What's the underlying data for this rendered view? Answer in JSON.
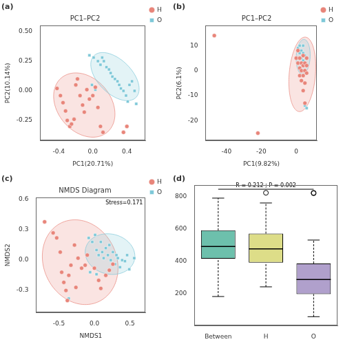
{
  "chart_data": [
    {
      "type": "scatter",
      "title": "PC1–PC2",
      "subtitle": "(a)",
      "xlabel": "PC1(20.71%)",
      "ylabel": "PC2(10.14%)",
      "xlim": [
        -0.62,
        0.62
      ],
      "ylim": [
        -0.42,
        0.55
      ],
      "xticks": [
        -0.4,
        {
          "value": 0,
          "label": "0.0"
        },
        0.4
      ],
      "yticks": [
        -0.25,
        {
          "value": 0,
          "label": "0.00"
        },
        0.25,
        {
          "value": 0.5,
          "label": "0.50"
        }
      ],
      "grid": false,
      "legend": "right",
      "series": [
        {
          "name": "H",
          "color": "#E8857A",
          "marker": "circle",
          "x": [
            -0.42,
            -0.38,
            -0.35,
            -0.32,
            -0.3,
            -0.27,
            -0.25,
            -0.22,
            -0.2,
            -0.18,
            -0.15,
            -0.12,
            -0.1,
            -0.07,
            -0.04,
            0.0,
            0.03,
            0.06,
            0.09,
            0.12,
            0.36,
            0.4
          ],
          "values": [
            0.02,
            -0.04,
            -0.1,
            -0.17,
            -0.25,
            -0.3,
            -0.28,
            -0.24,
            0.05,
            0.1,
            -0.04,
            -0.12,
            -0.18,
            0.01,
            -0.07,
            -0.04,
            0.03,
            -0.14,
            -0.3,
            -0.35,
            -0.35,
            -0.3
          ],
          "ellipse": {
            "cx": -0.1,
            "cy": -0.12,
            "w": 0.75,
            "h": 0.5,
            "angle": -22
          }
        },
        {
          "name": "O",
          "color": "#7EC8D8",
          "marker": "square",
          "x": [
            -0.04,
            0.01,
            0.06,
            0.09,
            0.11,
            0.13,
            0.16,
            0.19,
            0.21,
            0.23,
            0.26,
            0.29,
            0.31,
            0.33,
            0.36,
            0.39,
            0.41,
            0.43,
            0.46,
            0.49,
            0.51,
            -0.01,
            0.03
          ],
          "values": [
            0.3,
            0.28,
            0.25,
            0.22,
            0.28,
            0.25,
            0.2,
            0.18,
            0.15,
            0.12,
            0.1,
            0.08,
            0.05,
            0.02,
            0.0,
            -0.04,
            -0.09,
            0.05,
            0.08,
            0.0,
            -0.11,
            0.05,
            0.01
          ],
          "ellipse": {
            "cx": 0.26,
            "cy": 0.12,
            "w": 0.62,
            "h": 0.32,
            "angle": -28
          }
        }
      ]
    },
    {
      "type": "scatter",
      "title": "PC1–PC2",
      "subtitle": "(b)",
      "xlabel": "PC1(9.82%)",
      "ylabel": "PC2(6.1%)",
      "xlim": [
        -52,
        12
      ],
      "ylim": [
        -28,
        18
      ],
      "xticks": [
        -40,
        -20,
        0
      ],
      "yticks": [
        -20,
        -10,
        0,
        10
      ],
      "grid": false,
      "legend": "right",
      "series": [
        {
          "name": "H",
          "color": "#E8857A",
          "marker": "circle",
          "x": [
            -47,
            -22,
            0,
            1,
            1,
            2,
            2,
            2,
            3,
            3,
            3,
            4,
            4,
            4,
            4,
            5,
            5,
            5,
            5,
            6,
            6,
            6
          ],
          "values": [
            14,
            -25,
            5,
            3,
            8,
            -2,
            1,
            5,
            -4,
            0,
            3,
            -8,
            -2,
            2,
            6,
            -13,
            -5,
            0,
            3,
            -1,
            2,
            5
          ],
          "ellipse": {
            "cx": 3.5,
            "cy": -1.5,
            "w": 15,
            "h": 30,
            "angle": -8
          }
        },
        {
          "name": "O",
          "color": "#7EC8D8",
          "marker": "square",
          "x": [
            1,
            2,
            2,
            3,
            3,
            4,
            4,
            4,
            5,
            5,
            5,
            6
          ],
          "values": [
            9,
            7,
            10,
            5,
            8,
            4,
            7,
            10,
            3,
            6,
            -14,
            -15
          ],
          "ellipse": {
            "cx": 4.0,
            "cy": 5.5,
            "w": 8,
            "h": 14,
            "angle": -5
          }
        }
      ]
    },
    {
      "type": "scatter",
      "title": "NMDS Diagram",
      "subtitle": "(c)",
      "xlabel": "NMDS1",
      "ylabel": "NMDS2",
      "xlim": [
        -0.82,
        0.72
      ],
      "ylim": [
        -0.52,
        0.62
      ],
      "xticks": [
        -0.5,
        {
          "value": 0,
          "label": "0.0"
        },
        0.5
      ],
      "yticks": [
        -0.3,
        {
          "value": 0,
          "label": "0.0"
        },
        0.3,
        0.6
      ],
      "grid": false,
      "legend": "right",
      "annotations": [
        {
          "text": "Stress=0.171"
        }
      ],
      "series": [
        {
          "name": "H",
          "color": "#E8857A",
          "marker": "circle",
          "x": [
            -0.7,
            -0.58,
            -0.53,
            -0.48,
            -0.46,
            -0.43,
            -0.4,
            -0.38,
            -0.36,
            -0.33,
            -0.28,
            -0.26,
            -0.23,
            -0.18,
            -0.13,
            -0.1,
            0.0,
            0.06,
            0.09,
            0.16,
            0.21,
            0.26
          ],
          "values": [
            0.38,
            0.27,
            0.22,
            0.08,
            -0.12,
            -0.22,
            -0.3,
            -0.4,
            -0.15,
            -0.05,
            0.15,
            -0.27,
            0.02,
            -0.08,
            -0.05,
            0.05,
            -0.08,
            -0.2,
            -0.28,
            -0.15,
            -0.1,
            -0.04
          ],
          "ellipse": {
            "cx": -0.2,
            "cy": -0.02,
            "w": 1.08,
            "h": 0.82,
            "angle": -15
          }
        },
        {
          "name": "O",
          "color": "#7EC8D8",
          "marker": "square",
          "x": [
            -0.08,
            -0.03,
            0.01,
            0.03,
            0.06,
            0.09,
            0.11,
            0.13,
            0.16,
            0.19,
            0.21,
            0.23,
            0.26,
            0.29,
            0.31,
            0.33,
            0.36,
            0.39,
            0.43,
            0.46,
            0.49,
            0.56,
            -0.06,
            0.03,
            -0.36
          ],
          "values": [
            0.22,
            0.18,
            0.25,
            0.1,
            0.05,
            0.18,
            0.08,
            0.02,
            0.12,
            0.05,
            0.15,
            0.0,
            0.08,
            -0.04,
            0.05,
            0.02,
            -0.07,
            0.0,
            -0.01,
            0.05,
            -0.09,
            0.02,
            -0.12,
            -0.14,
            -0.38
          ],
          "ellipse": {
            "cx": 0.22,
            "cy": 0.06,
            "w": 0.7,
            "h": 0.4,
            "angle": -5
          }
        }
      ]
    },
    {
      "type": "box",
      "subtitle": "(d)",
      "categories": [
        "Between",
        "H",
        "O"
      ],
      "ylim": [
        0,
        870
      ],
      "yticks": [
        200,
        400,
        600,
        800
      ],
      "grid": false,
      "annotations": [
        {
          "text": "R = 0.212 ; P = 0.002",
          "x": "H",
          "y": 850
        }
      ],
      "series": [
        {
          "type": "box",
          "values": [
            {
              "median": 490,
              "q1": 415,
              "q3": 590,
              "whisker_low": 180,
              "whisker_high": 790
            },
            {
              "median": 475,
              "q1": 390,
              "q3": 570,
              "whisker_low": 240,
              "whisker_high": 760
            },
            {
              "median": 285,
              "q1": 195,
              "q3": 385,
              "whisker_low": 55,
              "whisker_high": 530
            }
          ],
          "colors": [
            "#6DC0AC",
            "#DDDD88",
            "#B0A0CC"
          ]
        },
        {
          "type": "scatter",
          "marker": "open_circle",
          "color": "#000000",
          "x": [
            "O"
          ],
          "values": [
            820
          ]
        },
        {
          "type": "scatter",
          "marker": "open_circle",
          "color": "#000000",
          "x": [
            "H",
            "O"
          ],
          "values": [
            823,
            823
          ]
        },
        {
          "type": "line",
          "color": "#000000",
          "x": [
            "Between",
            "O"
          ],
          "values": [
            845,
            845
          ]
        }
      ]
    }
  ]
}
